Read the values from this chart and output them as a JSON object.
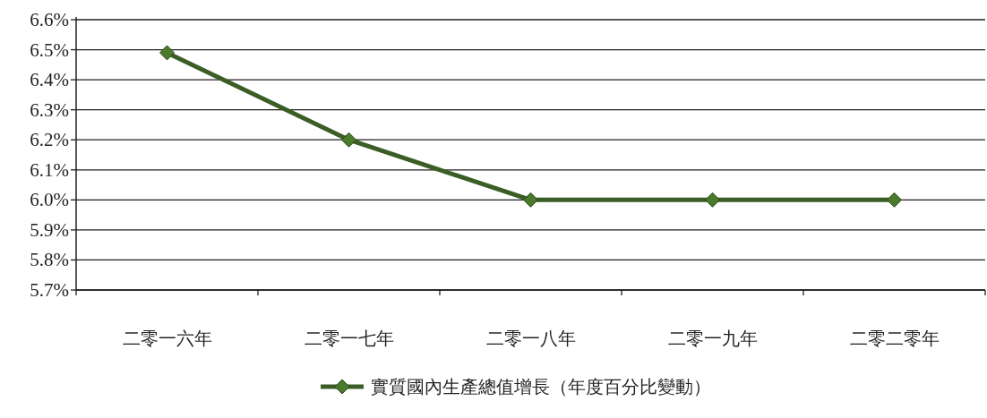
{
  "chart_data": {
    "type": "line",
    "categories": [
      "二零一六年",
      "二零一七年",
      "二零一八年",
      "二零一九年",
      "二零二零年"
    ],
    "series": [
      {
        "name": "實質國內生產總值增長（年度百分比變動）",
        "color": "#3a5e25",
        "values": [
          6.49,
          6.2,
          6.0,
          6.0,
          6.0
        ]
      }
    ],
    "ylim": [
      5.7,
      6.6
    ],
    "yticks": [
      {
        "value": 5.7,
        "label": "5.7%"
      },
      {
        "value": 5.8,
        "label": "5.8%"
      },
      {
        "value": 5.9,
        "label": "5.9%"
      },
      {
        "value": 6.0,
        "label": "6.0%"
      },
      {
        "value": 6.1,
        "label": "6.1%"
      },
      {
        "value": 6.2,
        "label": "6.2%"
      },
      {
        "value": 6.3,
        "label": "6.3%"
      },
      {
        "value": 6.4,
        "label": "6.4%"
      },
      {
        "value": 6.5,
        "label": "6.5%"
      },
      {
        "value": 6.6,
        "label": "6.6%"
      }
    ],
    "grid": "y",
    "legend": "bottom",
    "marker": "diamond",
    "line_style": "solid"
  }
}
